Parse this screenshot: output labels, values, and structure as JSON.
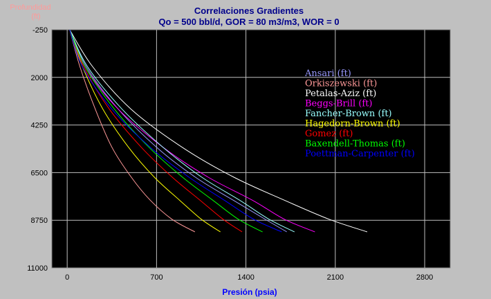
{
  "chart_data": {
    "type": "line",
    "title": "Correlaciones Gradientes",
    "subtitle": "Qo = 500 bbl/d, GOR = 80 m3/m3, WOR = 0",
    "xlabel": "Presión (psia)",
    "ylabel_line1": "Profundidad",
    "ylabel_line2": "(ft)",
    "xlim": [
      -120,
      3000
    ],
    "ylim": [
      -250,
      11000
    ],
    "y_inverted": true,
    "xticks": [
      0,
      700,
      1400,
      2100,
      2800
    ],
    "yticks": [
      -250,
      2000,
      4250,
      6500,
      8750,
      11000
    ],
    "grid": true,
    "background": "#000000",
    "grid_color": "#c0c0c0",
    "legend_position": "right-center",
    "series": [
      {
        "name": "Ansari (ft)",
        "color": "#9999ff",
        "x": [
          20,
          150,
          400,
          700,
          1000,
          1300,
          1550,
          1720
        ],
        "y": [
          -250,
          1500,
          3500,
          5300,
          6700,
          7800,
          8700,
          9300
        ]
      },
      {
        "name": "Orkiszewski (ft)",
        "color": "#ff9999",
        "x": [
          20,
          100,
          220,
          350,
          500,
          650,
          820,
          1000
        ],
        "y": [
          -250,
          1500,
          3500,
          5300,
          6700,
          7800,
          8700,
          9300
        ]
      },
      {
        "name": "Petalas-Aziz (ft)",
        "color": "#ffffff",
        "x": [
          20,
          200,
          500,
          900,
          1300,
          1700,
          2050,
          2350
        ],
        "y": [
          -250,
          1500,
          3500,
          5300,
          6700,
          7800,
          8700,
          9300
        ]
      },
      {
        "name": "Beggs-Brill (ft)",
        "color": "#ff00ff",
        "x": [
          20,
          140,
          400,
          750,
          1100,
          1450,
          1700,
          1940
        ],
        "y": [
          -250,
          1500,
          3500,
          5300,
          6700,
          7800,
          8700,
          9300
        ]
      },
      {
        "name": "Fancher-Brown (ft)",
        "color": "#99ffff",
        "x": [
          20,
          160,
          430,
          750,
          1050,
          1350,
          1580,
          1780
        ],
        "y": [
          -250,
          1500,
          3500,
          5300,
          6700,
          7800,
          8700,
          9300
        ]
      },
      {
        "name": "Hagedorn-Brown (ft)",
        "color": "#ffff00",
        "x": [
          20,
          120,
          280,
          480,
          680,
          880,
          1050,
          1200
        ],
        "y": [
          -250,
          1500,
          3500,
          5300,
          6700,
          7800,
          8700,
          9300
        ]
      },
      {
        "name": "Gomez (ft)",
        "color": "#ff0000",
        "x": [
          20,
          130,
          330,
          580,
          820,
          1040,
          1220,
          1370
        ],
        "y": [
          -250,
          1500,
          3500,
          5300,
          6700,
          7800,
          8700,
          9300
        ]
      },
      {
        "name": "Baxendell-Thomas (ft)",
        "color": "#00ff00",
        "x": [
          20,
          140,
          370,
          640,
          900,
          1140,
          1340,
          1530
        ],
        "y": [
          -250,
          1500,
          3500,
          5300,
          6700,
          7800,
          8700,
          9300
        ]
      },
      {
        "name": "Poettman-Carpenter (ft)",
        "color": "#0000ff",
        "x": [
          20,
          120,
          350,
          650,
          950,
          1230,
          1460,
          1680
        ],
        "y": [
          -250,
          1500,
          3500,
          5300,
          6700,
          7800,
          8700,
          9300
        ]
      }
    ]
  }
}
